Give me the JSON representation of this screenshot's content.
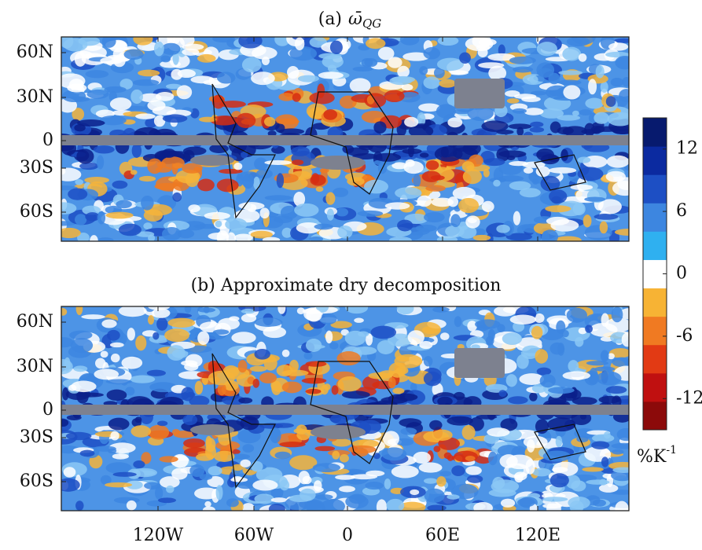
{
  "panels": [
    {
      "label": "(a)",
      "symbol": "ω̄",
      "subscript": "QG"
    },
    {
      "label": "(b) Approximate dry decomposition"
    }
  ],
  "lat_labels": [
    "60N",
    "30N",
    "0",
    "30S",
    "60S"
  ],
  "lon_labels": [
    "120W",
    "60W",
    "0",
    "60E",
    "120E"
  ],
  "colorbar": {
    "lim": [
      -15,
      15
    ],
    "ticks": [
      12,
      6,
      0,
      -6,
      -12
    ],
    "unit": "%K",
    "unit_exponent": "-1"
  }
}
